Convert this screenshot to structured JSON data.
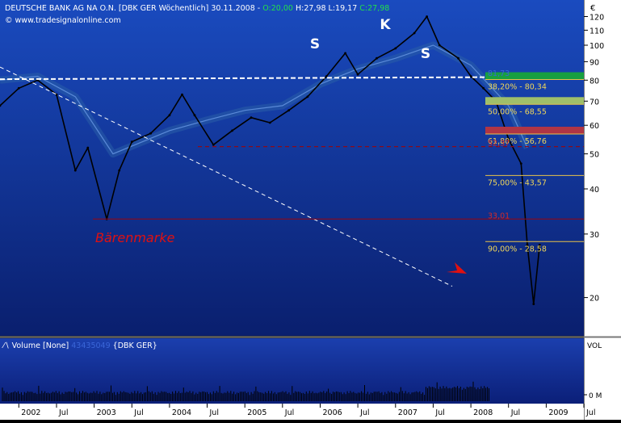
{
  "header": {
    "instrument": "DEUTSCHE BANK AG NA O.N. [DBK GER  Wöchentlich] 30.11.2008 - ",
    "open": "O:20,00",
    "hl": " H:27,98 L:19,17 ",
    "close": "C:27,98",
    "website": "www.tradesignalonline.com"
  },
  "currency": "€",
  "annotations": {
    "shoulder_left": "S",
    "head": "K",
    "shoulder_right": "S",
    "bear_mark": "Bärenmarke"
  },
  "volume": {
    "label": "Volume [None]",
    "value": "43435049",
    "instrument": "{DBK GER}",
    "axis_title": "VOL",
    "axis_tick": "0 M"
  },
  "colors": {
    "price": "#000000",
    "moving_average": "#2a5fa8",
    "neckline": "#ffffff",
    "trendline": "#ffffff",
    "support_line": "#8b0a1a",
    "fib_line": "#e8c24a",
    "fib_label": "#f0d65a",
    "arrow": "#e01010",
    "bear_label": "#e01010",
    "fib_band_80": "#18a040",
    "fib_band_68": "#9fbf6a",
    "fib_band_56": "#b03545"
  },
  "chart_data": {
    "type": "line",
    "frequency": "weekly",
    "x_axis_labels": [
      "2002",
      "Jul",
      "2003",
      "Jul",
      "2004",
      "Jul",
      "2005",
      "Jul",
      "2006",
      "Jul",
      "2007",
      "Jul",
      "2008",
      "Jul",
      "2009",
      "Jul"
    ],
    "y_scale": "log",
    "ylim": [
      16,
      128
    ],
    "y_ticks": [
      20,
      30,
      40,
      50,
      60,
      70,
      80,
      90,
      100,
      110,
      120
    ],
    "series": [
      {
        "x": [
          "2001-10",
          "2002-01",
          "2002-04",
          "2002-07",
          "2002-10",
          "2002-12",
          "2003-03",
          "2003-05",
          "2003-07",
          "2003-10",
          "2004-01",
          "2004-03",
          "2004-05",
          "2004-08",
          "2004-11",
          "2005-02",
          "2005-05",
          "2005-08",
          "2005-11",
          "2006-02",
          "2006-05",
          "2006-07",
          "2006-10",
          "2007-01",
          "2007-04",
          "2007-06",
          "2007-08",
          "2007-11",
          "2008-01",
          "2008-03",
          "2008-05",
          "2008-07",
          "2008-09",
          "2008-10",
          "2008-11",
          "2008-11-30"
        ],
        "values": [
          68,
          76,
          80,
          73,
          45,
          52,
          33,
          45,
          54,
          57,
          64,
          73,
          64,
          53,
          58,
          63,
          61,
          66,
          72,
          82,
          95,
          83,
          92,
          98,
          108,
          120,
          100,
          92,
          82,
          76,
          70,
          55,
          47,
          28,
          19.2,
          27.98
        ]
      },
      {
        "x": [
          "2001-10",
          "2002-04",
          "2002-10",
          "2003-04",
          "2004-01",
          "2004-07",
          "2005-01",
          "2005-07",
          "2006-01",
          "2006-07",
          "2007-01",
          "2007-07",
          "2008-01",
          "2008-07",
          "2008-10"
        ],
        "values": [
          80,
          82,
          72,
          50,
          58,
          62,
          66,
          68,
          78,
          86,
          92,
          100,
          88,
          68,
          52
        ]
      }
    ],
    "neckline": 80.5,
    "support_level": 33.01,
    "fibonacci_levels": [
      {
        "label": "38,20% - 80,34",
        "value": 80.34
      },
      {
        "label": "50,00% - 68,55",
        "value": 68.55
      },
      {
        "label": "61,80% - 56,76",
        "value": 56.76
      },
      {
        "label": "75,00% - 43,57",
        "value": 43.57
      },
      {
        "label": "90,00% - 28,58",
        "value": 28.58
      }
    ],
    "right_axis_labels": [
      {
        "text": "81,73",
        "value": 81.73
      },
      {
        "text": "52,37",
        "value": 52.37
      },
      {
        "text": "33,01",
        "value": 33.01
      }
    ],
    "volume_series_max": 43435049
  }
}
